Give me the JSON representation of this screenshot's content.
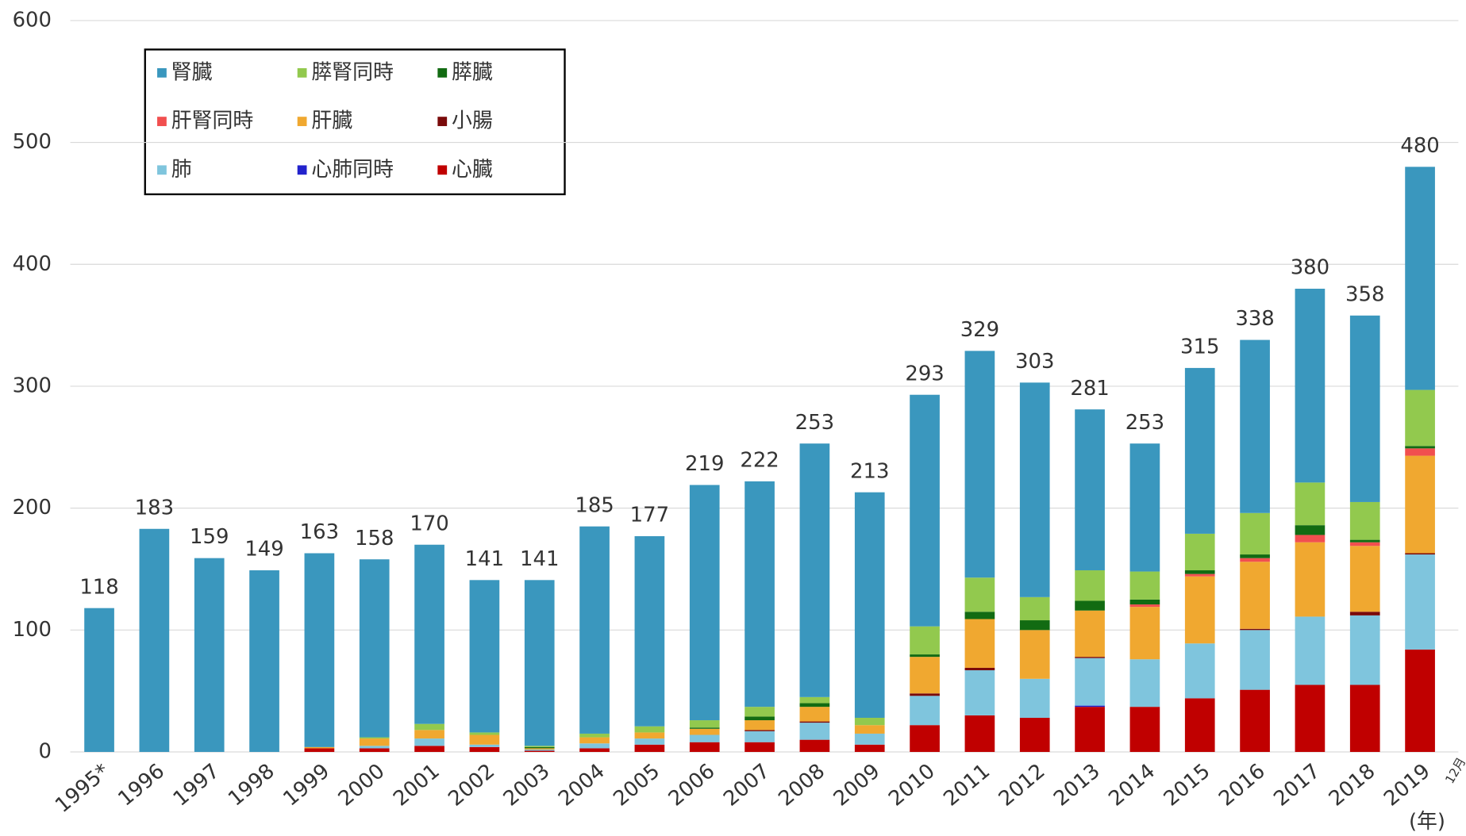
{
  "chart_data": {
    "type": "stacked-bar",
    "categories": [
      "1995*",
      "1996",
      "1997",
      "1998",
      "1999",
      "2000",
      "2001",
      "2002",
      "2003",
      "2004",
      "2005",
      "2006",
      "2007",
      "2008",
      "2009",
      "2010",
      "2011",
      "2012",
      "2013",
      "2014",
      "2015",
      "2016",
      "2017",
      "2018",
      "2019"
    ],
    "series": [
      {
        "name": "腎臓",
        "color": "#3a97be",
        "values": [
          118,
          183,
          159,
          149,
          159,
          146,
          147,
          125,
          136,
          170,
          156,
          193,
          185,
          208,
          185,
          190,
          186,
          176,
          132,
          105,
          136,
          142,
          159,
          153,
          183
        ]
      },
      {
        "name": "膵腎同時",
        "color": "#92c94e",
        "values": [
          0,
          0,
          0,
          0,
          0,
          1,
          5,
          2,
          1,
          3,
          5,
          6,
          8,
          5,
          6,
          23,
          28,
          19,
          25,
          23,
          30,
          34,
          35,
          31,
          46
        ]
      },
      {
        "name": "膵臓",
        "color": "#126b12",
        "values": [
          0,
          0,
          0,
          0,
          0,
          0,
          0,
          0,
          1,
          0,
          0,
          1,
          3,
          3,
          0,
          2,
          6,
          8,
          8,
          4,
          3,
          3,
          8,
          2,
          2
        ]
      },
      {
        "name": "肝腎同時",
        "color": "#f14f4f",
        "values": [
          0,
          0,
          0,
          0,
          0,
          0,
          0,
          0,
          0,
          0,
          0,
          0,
          0,
          0,
          0,
          0,
          0,
          0,
          0,
          2,
          2,
          3,
          6,
          3,
          6
        ]
      },
      {
        "name": "肝臓",
        "color": "#f0a830",
        "values": [
          0,
          0,
          0,
          0,
          1,
          6,
          7,
          8,
          1,
          5,
          5,
          5,
          8,
          12,
          7,
          30,
          40,
          40,
          38,
          43,
          55,
          55,
          61,
          54,
          80
        ]
      },
      {
        "name": "小腸",
        "color": "#7a0a0a",
        "values": [
          0,
          0,
          0,
          0,
          0,
          0,
          0,
          0,
          0,
          0,
          0,
          0,
          1,
          1,
          0,
          2,
          2,
          0,
          1,
          0,
          0,
          1,
          0,
          3,
          1
        ]
      },
      {
        "name": "肺",
        "color": "#7fc5dd",
        "values": [
          0,
          0,
          0,
          0,
          0,
          2,
          6,
          2,
          1,
          4,
          5,
          6,
          9,
          14,
          9,
          24,
          37,
          32,
          39,
          39,
          45,
          49,
          56,
          57,
          78
        ]
      },
      {
        "name": "心肺同時",
        "color": "#2222cc",
        "values": [
          0,
          0,
          0,
          0,
          0,
          0,
          0,
          0,
          0,
          0,
          0,
          0,
          0,
          0,
          0,
          0,
          0,
          0,
          1,
          0,
          0,
          0,
          0,
          0,
          0
        ]
      },
      {
        "name": "心臓",
        "color": "#c00000",
        "values": [
          0,
          0,
          0,
          0,
          3,
          3,
          5,
          4,
          1,
          3,
          6,
          8,
          8,
          10,
          6,
          22,
          30,
          28,
          37,
          37,
          44,
          51,
          55,
          55,
          84
        ]
      }
    ],
    "totals": [
      118,
      183,
      159,
      149,
      163,
      158,
      170,
      141,
      141,
      185,
      177,
      219,
      222,
      253,
      213,
      293,
      329,
      303,
      281,
      253,
      315,
      338,
      380,
      358,
      480
    ],
    "ylim": [
      0,
      600
    ],
    "yticks": [
      0,
      100,
      200,
      300,
      400,
      500,
      600
    ],
    "grid": true,
    "x_unit": "(年)",
    "note": "12月"
  }
}
